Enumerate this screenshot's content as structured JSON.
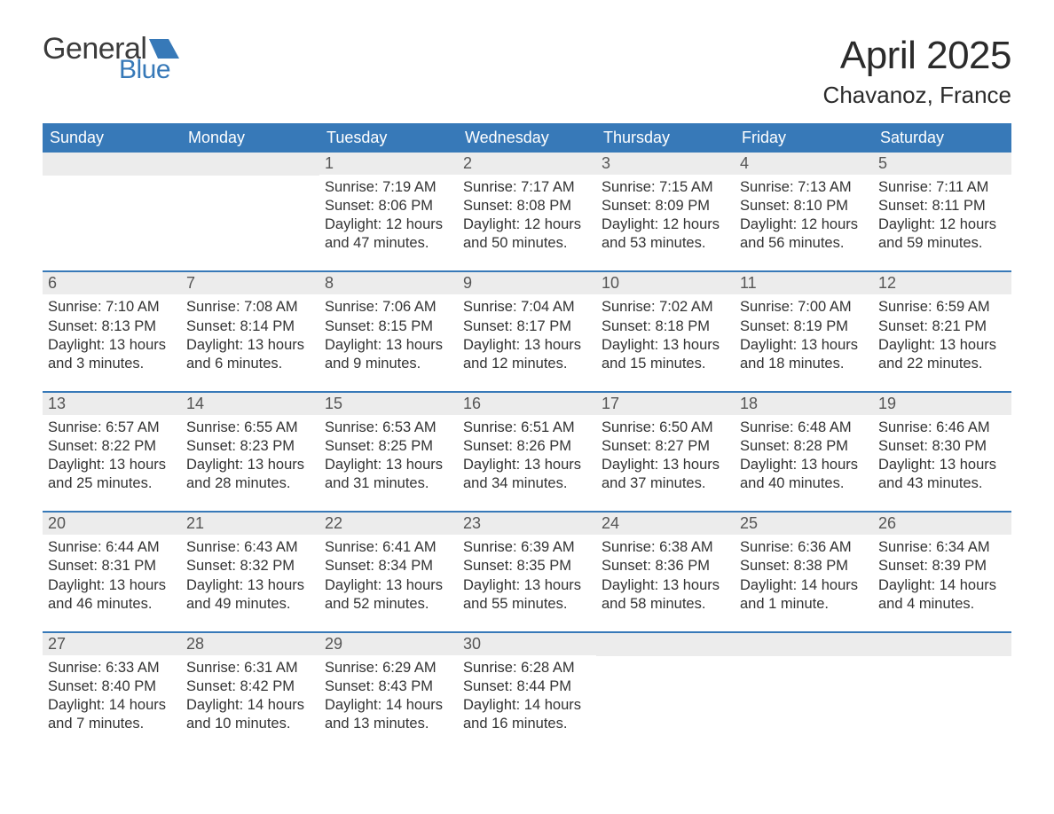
{
  "logo": {
    "line1": "General",
    "line2": "Blue",
    "flag_color": "#3779b8"
  },
  "header": {
    "month_title": "April 2025",
    "location": "Chavanoz, France"
  },
  "calendar": {
    "accent_color": "#3779b8",
    "strip_color": "#ececec",
    "background_color": "#ffffff",
    "text_color": "#333333",
    "day_font_size_pt": 12,
    "daynum_font_size_pt": 14,
    "days_of_week": [
      "Sunday",
      "Monday",
      "Tuesday",
      "Wednesday",
      "Thursday",
      "Friday",
      "Saturday"
    ],
    "weeks": [
      [
        null,
        null,
        {
          "n": "1",
          "sunrise": "7:19 AM",
          "sunset": "8:06 PM",
          "daylight": "12 hours and 47 minutes."
        },
        {
          "n": "2",
          "sunrise": "7:17 AM",
          "sunset": "8:08 PM",
          "daylight": "12 hours and 50 minutes."
        },
        {
          "n": "3",
          "sunrise": "7:15 AM",
          "sunset": "8:09 PM",
          "daylight": "12 hours and 53 minutes."
        },
        {
          "n": "4",
          "sunrise": "7:13 AM",
          "sunset": "8:10 PM",
          "daylight": "12 hours and 56 minutes."
        },
        {
          "n": "5",
          "sunrise": "7:11 AM",
          "sunset": "8:11 PM",
          "daylight": "12 hours and 59 minutes."
        }
      ],
      [
        {
          "n": "6",
          "sunrise": "7:10 AM",
          "sunset": "8:13 PM",
          "daylight": "13 hours and 3 minutes."
        },
        {
          "n": "7",
          "sunrise": "7:08 AM",
          "sunset": "8:14 PM",
          "daylight": "13 hours and 6 minutes."
        },
        {
          "n": "8",
          "sunrise": "7:06 AM",
          "sunset": "8:15 PM",
          "daylight": "13 hours and 9 minutes."
        },
        {
          "n": "9",
          "sunrise": "7:04 AM",
          "sunset": "8:17 PM",
          "daylight": "13 hours and 12 minutes."
        },
        {
          "n": "10",
          "sunrise": "7:02 AM",
          "sunset": "8:18 PM",
          "daylight": "13 hours and 15 minutes."
        },
        {
          "n": "11",
          "sunrise": "7:00 AM",
          "sunset": "8:19 PM",
          "daylight": "13 hours and 18 minutes."
        },
        {
          "n": "12",
          "sunrise": "6:59 AM",
          "sunset": "8:21 PM",
          "daylight": "13 hours and 22 minutes."
        }
      ],
      [
        {
          "n": "13",
          "sunrise": "6:57 AM",
          "sunset": "8:22 PM",
          "daylight": "13 hours and 25 minutes."
        },
        {
          "n": "14",
          "sunrise": "6:55 AM",
          "sunset": "8:23 PM",
          "daylight": "13 hours and 28 minutes."
        },
        {
          "n": "15",
          "sunrise": "6:53 AM",
          "sunset": "8:25 PM",
          "daylight": "13 hours and 31 minutes."
        },
        {
          "n": "16",
          "sunrise": "6:51 AM",
          "sunset": "8:26 PM",
          "daylight": "13 hours and 34 minutes."
        },
        {
          "n": "17",
          "sunrise": "6:50 AM",
          "sunset": "8:27 PM",
          "daylight": "13 hours and 37 minutes."
        },
        {
          "n": "18",
          "sunrise": "6:48 AM",
          "sunset": "8:28 PM",
          "daylight": "13 hours and 40 minutes."
        },
        {
          "n": "19",
          "sunrise": "6:46 AM",
          "sunset": "8:30 PM",
          "daylight": "13 hours and 43 minutes."
        }
      ],
      [
        {
          "n": "20",
          "sunrise": "6:44 AM",
          "sunset": "8:31 PM",
          "daylight": "13 hours and 46 minutes."
        },
        {
          "n": "21",
          "sunrise": "6:43 AM",
          "sunset": "8:32 PM",
          "daylight": "13 hours and 49 minutes."
        },
        {
          "n": "22",
          "sunrise": "6:41 AM",
          "sunset": "8:34 PM",
          "daylight": "13 hours and 52 minutes."
        },
        {
          "n": "23",
          "sunrise": "6:39 AM",
          "sunset": "8:35 PM",
          "daylight": "13 hours and 55 minutes."
        },
        {
          "n": "24",
          "sunrise": "6:38 AM",
          "sunset": "8:36 PM",
          "daylight": "13 hours and 58 minutes."
        },
        {
          "n": "25",
          "sunrise": "6:36 AM",
          "sunset": "8:38 PM",
          "daylight": "14 hours and 1 minute."
        },
        {
          "n": "26",
          "sunrise": "6:34 AM",
          "sunset": "8:39 PM",
          "daylight": "14 hours and 4 minutes."
        }
      ],
      [
        {
          "n": "27",
          "sunrise": "6:33 AM",
          "sunset": "8:40 PM",
          "daylight": "14 hours and 7 minutes."
        },
        {
          "n": "28",
          "sunrise": "6:31 AM",
          "sunset": "8:42 PM",
          "daylight": "14 hours and 10 minutes."
        },
        {
          "n": "29",
          "sunrise": "6:29 AM",
          "sunset": "8:43 PM",
          "daylight": "14 hours and 13 minutes."
        },
        {
          "n": "30",
          "sunrise": "6:28 AM",
          "sunset": "8:44 PM",
          "daylight": "14 hours and 16 minutes."
        },
        null,
        null,
        null
      ]
    ],
    "labels": {
      "sunrise_prefix": "Sunrise: ",
      "sunset_prefix": "Sunset: ",
      "daylight_prefix": "Daylight: "
    }
  }
}
